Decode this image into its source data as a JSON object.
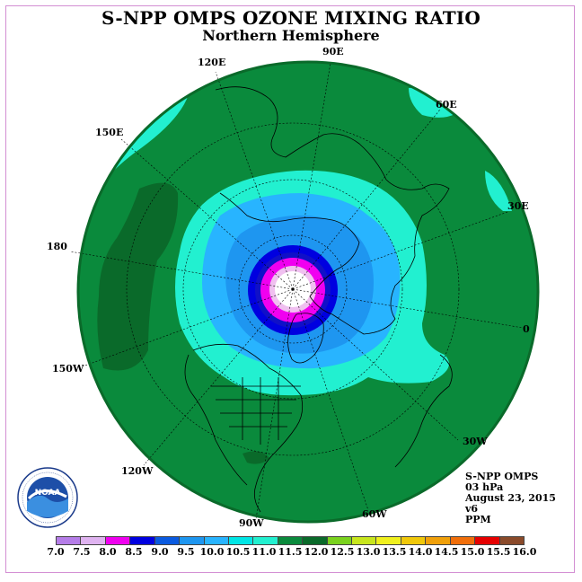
{
  "header": {
    "title": "S-NPP OMPS OZONE MIXING RATIO",
    "subtitle": "Northern Hemisphere"
  },
  "longitude_labels": {
    "lon_90e": "90E",
    "lon_60e": "60E",
    "lon_30e": "30E",
    "lon_0": "0",
    "lon_30w": "30W",
    "lon_60w": "60W",
    "lon_90w": "90W",
    "lon_120w": "120W",
    "lon_150w": "150W",
    "lon_180": "180",
    "lon_150e": "150E",
    "lon_120e": "120E"
  },
  "info_panel": {
    "instrument": "S-NPP OMPS",
    "level": "03 hPa",
    "date": "August 23, 2015",
    "version": "v6",
    "units": "PPM"
  },
  "logo": {
    "name": "NOAA",
    "ring_text": "NATIONAL OCEANIC AND ATMOSPHERIC ADMINISTRATION · U.S. DEPARTMENT OF COMMERCE"
  },
  "colorbar": {
    "tick_labels": [
      "7.0",
      "7.5",
      "8.0",
      "8.5",
      "9.0",
      "9.5",
      "10.0",
      "10.5",
      "11.0",
      "11.5",
      "12.0",
      "12.5",
      "13.0",
      "13.5",
      "14.0",
      "14.5",
      "15.0",
      "15.5",
      "16.0"
    ],
    "colors": [
      "#b57de8",
      "#dfb3f0",
      "#f000f0",
      "#0000e0",
      "#0a5ae0",
      "#1e96f0",
      "#28b4ff",
      "#00e6e6",
      "#22f0d0",
      "#0a8a3c",
      "#0a6a2a",
      "#7ad21e",
      "#c8e61e",
      "#f0f01e",
      "#f0c80a",
      "#f0a00a",
      "#f06e0a",
      "#e60000",
      "#8a4a2a"
    ]
  },
  "map": {
    "projection": "north-polar-stereographic",
    "bands": [
      {
        "value": "11.5",
        "color": "#0a8a3c"
      },
      {
        "value": "12.0",
        "color": "#0a6a2a"
      },
      {
        "value": "11.0",
        "color": "#22f0d0"
      },
      {
        "value": "10.5",
        "color": "#28b4ff"
      },
      {
        "value": "10.0",
        "color": "#1e96f0"
      },
      {
        "value": "9.0",
        "color": "#0000e0"
      },
      {
        "value": "8.0",
        "color": "#f000f0"
      },
      {
        "value": "7.5",
        "color": "#f0c0f0"
      },
      {
        "value": "7.0",
        "color": "#ffffff"
      }
    ]
  }
}
